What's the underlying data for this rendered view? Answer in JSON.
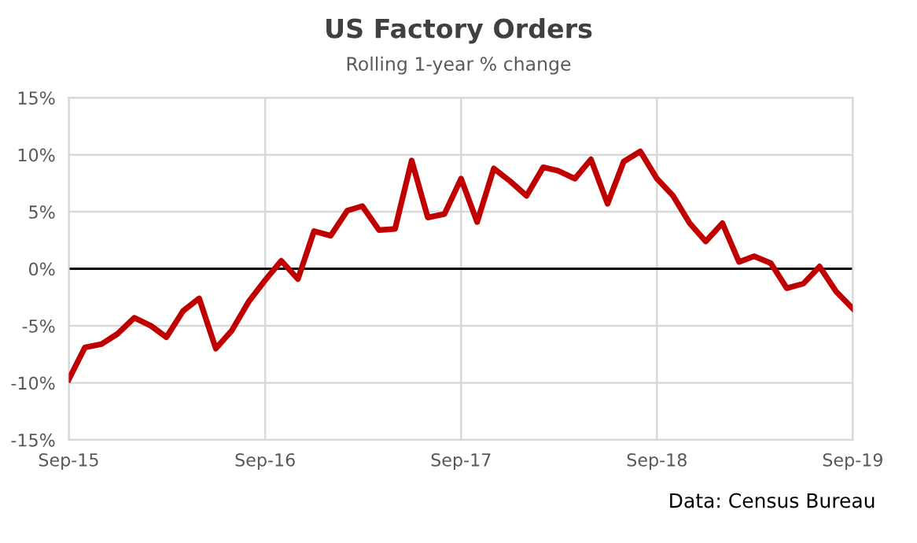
{
  "chart_data": {
    "type": "line",
    "title": "US Factory Orders",
    "subtitle": "Rolling 1-year % change",
    "x": [
      "2015-09",
      "2015-10",
      "2015-11",
      "2015-12",
      "2016-01",
      "2016-02",
      "2016-03",
      "2016-04",
      "2016-05",
      "2016-06",
      "2016-07",
      "2016-08",
      "2016-09",
      "2016-10",
      "2016-11",
      "2016-12",
      "2017-01",
      "2017-02",
      "2017-03",
      "2017-04",
      "2017-05",
      "2017-06",
      "2017-07",
      "2017-08",
      "2017-09",
      "2017-10",
      "2017-11",
      "2017-12",
      "2018-01",
      "2018-02",
      "2018-03",
      "2018-04",
      "2018-05",
      "2018-06",
      "2018-07",
      "2018-08",
      "2018-09",
      "2018-10",
      "2018-11",
      "2018-12",
      "2019-01",
      "2019-02",
      "2019-03",
      "2019-04",
      "2019-05",
      "2019-06",
      "2019-07",
      "2019-08",
      "2019-09"
    ],
    "series": [
      {
        "color": "#c00000",
        "values": [
          -9.7,
          -6.9,
          -6.6,
          -5.7,
          -4.3,
          -5.0,
          -6.0,
          -3.7,
          -2.6,
          -7.0,
          -5.4,
          -2.9,
          -1.0,
          0.7,
          -0.9,
          3.3,
          2.9,
          5.1,
          5.5,
          3.4,
          3.5,
          9.5,
          4.5,
          4.8,
          7.9,
          4.1,
          8.8,
          7.7,
          6.4,
          8.9,
          8.6,
          7.9,
          9.6,
          5.7,
          9.4,
          10.3,
          7.9,
          6.4,
          4.0,
          2.4,
          4.0,
          0.6,
          1.1,
          0.5,
          -1.7,
          -1.3,
          0.2,
          -2.0,
          -3.5
        ]
      }
    ],
    "xlim": [
      "2015-09",
      "2019-09"
    ],
    "xticks": [
      {
        "value": "2015-09",
        "label": "Sep-15"
      },
      {
        "value": "2016-09",
        "label": "Sep-16"
      },
      {
        "value": "2017-09",
        "label": "Sep-17"
      },
      {
        "value": "2018-09",
        "label": "Sep-18"
      },
      {
        "value": "2019-09",
        "label": "Sep-19"
      }
    ],
    "ylim": [
      -15,
      15
    ],
    "yticks": [
      {
        "value": -15,
        "label": "-15%"
      },
      {
        "value": -10,
        "label": "-10%"
      },
      {
        "value": -5,
        "label": "-5%"
      },
      {
        "value": 0,
        "label": "0%"
      },
      {
        "value": 5,
        "label": "5%"
      },
      {
        "value": 10,
        "label": "10%"
      },
      {
        "value": 15,
        "label": "15%"
      }
    ],
    "ref_lines": [
      {
        "axis": "y",
        "value": 0,
        "color": "#000000"
      }
    ],
    "grid": true,
    "annotations": [
      "Data: Census Bureau"
    ]
  }
}
